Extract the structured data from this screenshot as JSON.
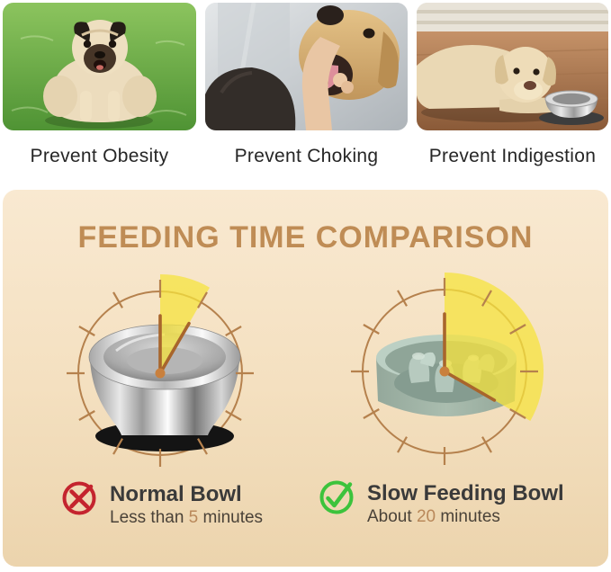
{
  "benefits": [
    {
      "caption": "Prevent Obesity",
      "photo": "obese-pug-on-grass"
    },
    {
      "caption": "Prevent Choking",
      "photo": "hand-checking-dog-mouth"
    },
    {
      "caption": "Prevent Indigestion",
      "photo": "dog-lying-beside-metal-bowl"
    }
  ],
  "panel": {
    "title": "FEEDING TIME COMPARISON",
    "clocks": [
      {
        "name": "normal-bowl",
        "minutes": 5
      },
      {
        "name": "slow-feeding-bowl",
        "minutes": 20
      }
    ],
    "legend": [
      {
        "icon": "cross-icon",
        "glyph": "✕",
        "label": "Normal Bowl",
        "sub_prefix": "Less than ",
        "minutes_text": "5",
        "sub_suffix": " minutes"
      },
      {
        "icon": "check-icon",
        "glyph": "✓",
        "label": "Slow Feeding Bowl",
        "sub_prefix": "About ",
        "minutes_text": "20",
        "sub_suffix": " minutes"
      }
    ]
  },
  "colors": {
    "panel_gradient_top": "#f9e9d1",
    "panel_gradient_bottom": "#ecd4ad",
    "title_text": "#bf8c55",
    "clock_ring": "#b5814d",
    "clock_hand": "#a8652c",
    "clock_center_dot": "#c9803d",
    "wedge_yellow": "#f6e33d",
    "cross_red": "#c4242e",
    "check_green": "#3cc33c",
    "minutes_highlight": "#b9885a",
    "caption_text": "#262626",
    "legend_label_text": "#3a3a3a",
    "legend_sub_text": "#4a4238"
  }
}
